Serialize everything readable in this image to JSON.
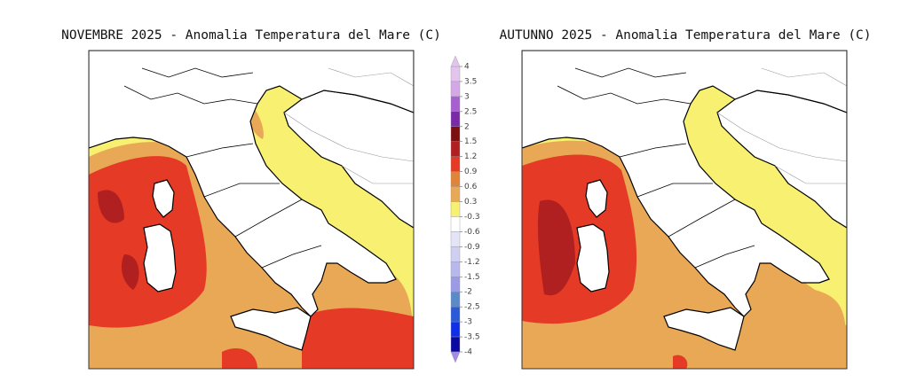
{
  "maps": [
    {
      "title": "NOVEMBRE 2025 - Anomalia Temperatura del Mare (C)"
    },
    {
      "title": "AUTUNNO 2025 - Anomalia Temperatura del Mare (C)"
    }
  ],
  "colorbar": {
    "ticks": [
      4,
      3.5,
      3,
      2.5,
      2,
      1.5,
      1.2,
      0.9,
      0.6,
      0.3,
      -0.3,
      -0.6,
      -0.9,
      -1.2,
      -1.5,
      -2,
      -2.5,
      -3,
      -3.5,
      -4
    ],
    "colors": [
      "#e2c4ec",
      "#d4a8e6",
      "#a860d0",
      "#7a2aa8",
      "#7a1010",
      "#b02020",
      "#e53a25",
      "#e0843a",
      "#e8a856",
      "#f8f070",
      "#ffffff",
      "#e4e4f8",
      "#cfcff2",
      "#b8b8ec",
      "#9a9ae6",
      "#5a8ac8",
      "#2a5ad8",
      "#1030e8",
      "#0a0aa0",
      "#4a3af0"
    ],
    "over_color": "#e2c4ec",
    "under_color": "#a68ae6"
  }
}
